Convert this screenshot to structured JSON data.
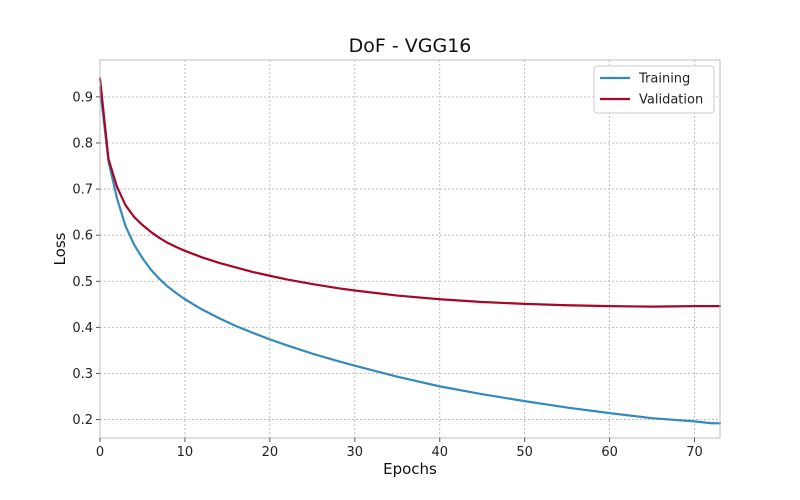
{
  "chart_data": {
    "type": "line",
    "title": "DoF - VGG16",
    "xlabel": "Epochs",
    "ylabel": "Loss",
    "xlim": [
      0,
      73
    ],
    "ylim": [
      0.16,
      0.98
    ],
    "xticks": [
      0,
      10,
      20,
      30,
      40,
      50,
      60,
      70
    ],
    "yticks": [
      0.2,
      0.3,
      0.4,
      0.5,
      0.6,
      0.7,
      0.8,
      0.9
    ],
    "grid": true,
    "legend_position": "top-right",
    "series": [
      {
        "name": "Training",
        "color": "#348abd",
        "x": [
          0,
          1,
          2,
          3,
          4,
          5,
          6,
          7,
          8,
          9,
          10,
          12,
          14,
          16,
          18,
          20,
          22,
          25,
          28,
          30,
          35,
          40,
          45,
          50,
          55,
          60,
          65,
          70,
          72,
          73
        ],
        "y": [
          0.92,
          0.76,
          0.68,
          0.62,
          0.58,
          0.55,
          0.525,
          0.505,
          0.488,
          0.474,
          0.461,
          0.439,
          0.42,
          0.403,
          0.388,
          0.374,
          0.361,
          0.343,
          0.327,
          0.317,
          0.293,
          0.272,
          0.255,
          0.24,
          0.226,
          0.214,
          0.203,
          0.196,
          0.192,
          0.192
        ]
      },
      {
        "name": "Validation",
        "color": "#a60628",
        "x": [
          0,
          1,
          2,
          3,
          4,
          5,
          6,
          7,
          8,
          9,
          10,
          12,
          14,
          16,
          18,
          20,
          22,
          25,
          28,
          30,
          35,
          40,
          45,
          50,
          55,
          60,
          65,
          70,
          73
        ],
        "y": [
          0.94,
          0.765,
          0.705,
          0.665,
          0.64,
          0.622,
          0.607,
          0.594,
          0.583,
          0.574,
          0.566,
          0.552,
          0.54,
          0.53,
          0.52,
          0.512,
          0.504,
          0.494,
          0.485,
          0.48,
          0.469,
          0.461,
          0.455,
          0.451,
          0.448,
          0.446,
          0.445,
          0.446,
          0.446
        ]
      }
    ]
  }
}
